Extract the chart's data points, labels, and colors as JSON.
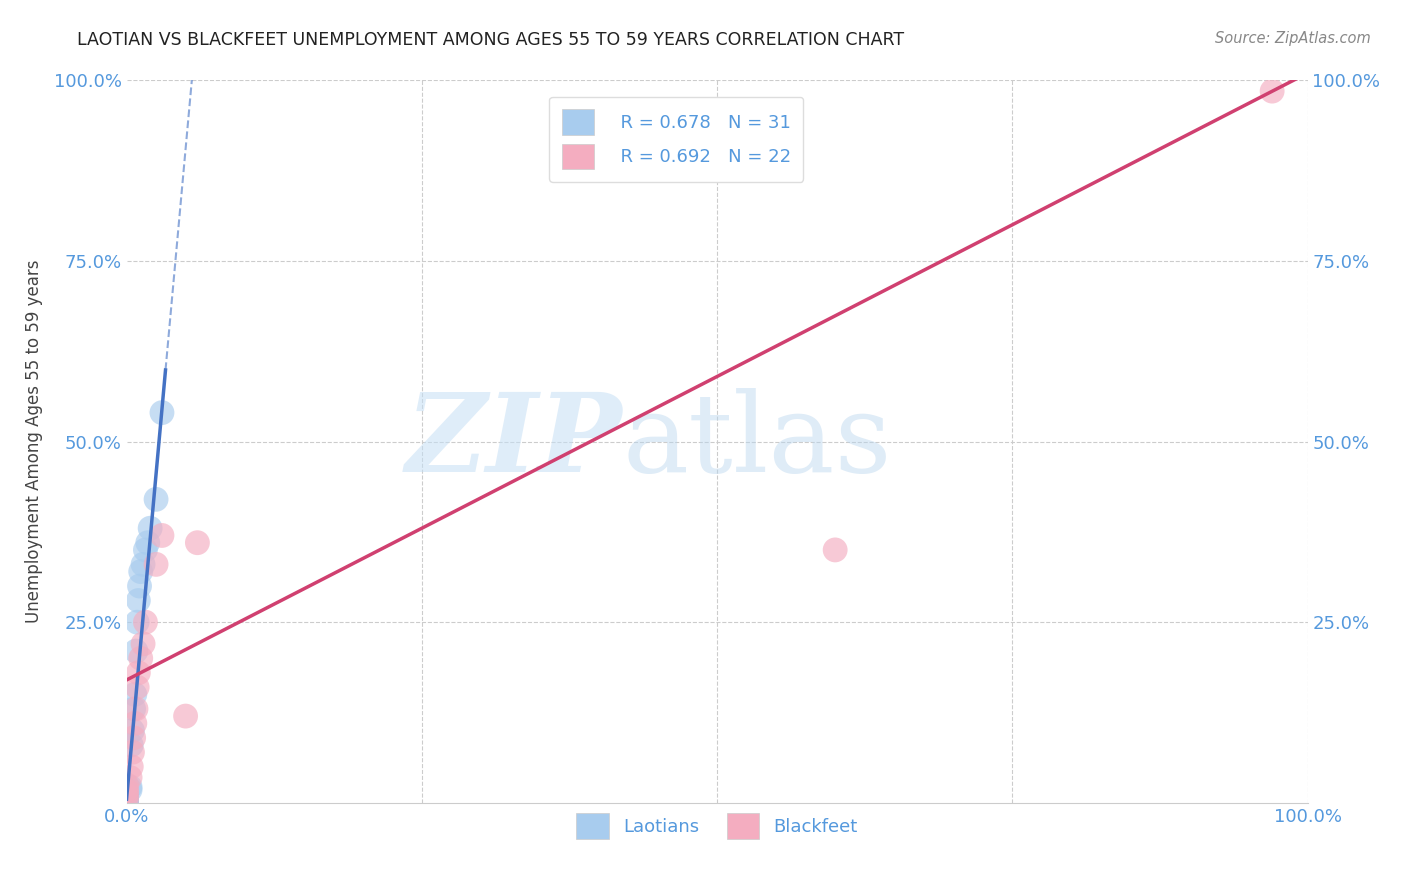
{
  "title": "LAOTIAN VS BLACKFEET UNEMPLOYMENT AMONG AGES 55 TO 59 YEARS CORRELATION CHART",
  "source": "Source: ZipAtlas.com",
  "ylabel": "Unemployment Among Ages 55 to 59 years",
  "xlim": [
    0,
    1.0
  ],
  "ylim": [
    0,
    1.0
  ],
  "xticks": [
    0.0,
    0.25,
    0.5,
    0.75,
    1.0
  ],
  "yticks": [
    0.0,
    0.25,
    0.5,
    0.75,
    1.0
  ],
  "watermark_zip": "ZIP",
  "watermark_atlas": "atlas",
  "laotian_color": "#a8ccee",
  "blackfeet_color": "#f4adc0",
  "laotian_line_color": "#4472c4",
  "blackfeet_line_color": "#d04070",
  "background_color": "#ffffff",
  "grid_color": "#cccccc",
  "axis_label_color": "#5599dd",
  "title_color": "#222222",
  "laotians_x": [
    0.0,
    0.0,
    0.0,
    0.0,
    0.0,
    0.0,
    0.0,
    0.0,
    0.0,
    0.0,
    0.0,
    0.0,
    0.0,
    0.0,
    0.003,
    0.003,
    0.004,
    0.005,
    0.006,
    0.007,
    0.008,
    0.009,
    0.01,
    0.011,
    0.012,
    0.014,
    0.016,
    0.018,
    0.02,
    0.025,
    0.03
  ],
  "laotians_y": [
    0.0,
    0.0,
    0.0,
    0.0,
    0.0,
    0.0,
    0.0,
    0.002,
    0.003,
    0.004,
    0.005,
    0.006,
    0.007,
    0.008,
    0.018,
    0.022,
    0.08,
    0.1,
    0.13,
    0.15,
    0.21,
    0.25,
    0.28,
    0.3,
    0.32,
    0.33,
    0.35,
    0.36,
    0.38,
    0.42,
    0.54
  ],
  "blackfeet_x": [
    0.0,
    0.0,
    0.0,
    0.0,
    0.0,
    0.003,
    0.004,
    0.005,
    0.006,
    0.007,
    0.008,
    0.009,
    0.01,
    0.012,
    0.014,
    0.016,
    0.025,
    0.03,
    0.05,
    0.06,
    0.6,
    0.97
  ],
  "blackfeet_y": [
    0.005,
    0.01,
    0.015,
    0.018,
    0.025,
    0.035,
    0.05,
    0.07,
    0.09,
    0.11,
    0.13,
    0.16,
    0.18,
    0.2,
    0.22,
    0.25,
    0.33,
    0.37,
    0.12,
    0.36,
    0.35,
    0.985
  ],
  "laotian_trend_x0": 0.0,
  "laotian_trend_y0": 0.005,
  "laotian_trend_slope": 18.0,
  "blackfeet_trend_x0": 0.0,
  "blackfeet_trend_y0": 0.17,
  "blackfeet_trend_slope": 0.84,
  "legend_label1": "R = 0.678   N = 31",
  "legend_label2": "R = 0.692   N = 22",
  "bottom_legend_laotians": "Laotians",
  "bottom_legend_blackfeet": "Blackfeet"
}
